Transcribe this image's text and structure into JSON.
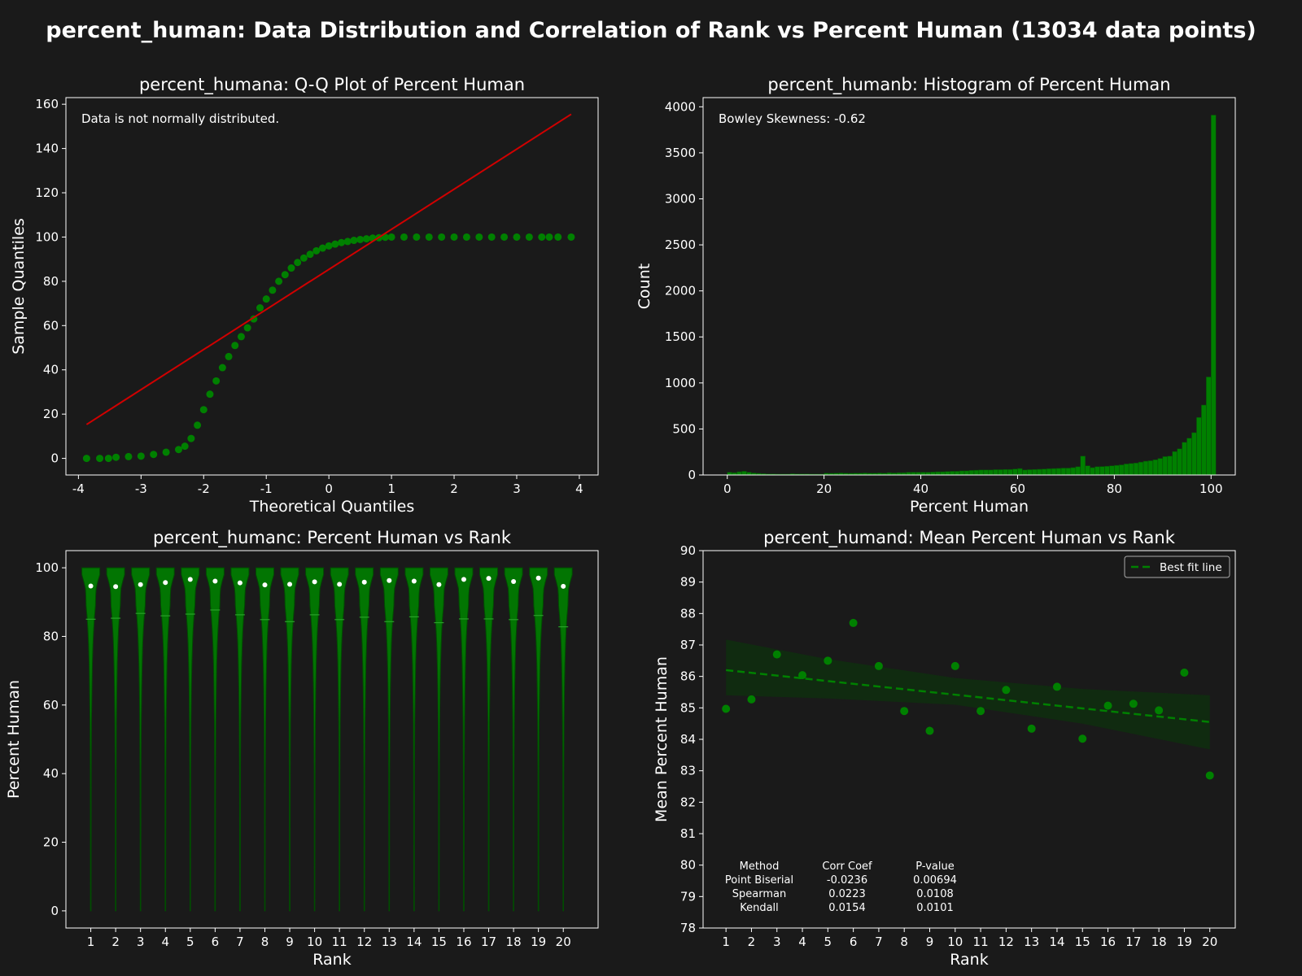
{
  "figure": {
    "suptitle": "percent_human: Data Distribution and Correlation of Rank vs Percent Human (13034 data points)",
    "colors": {
      "background": "#1a1a1a",
      "marker": "#008000",
      "line": "#d00000",
      "text": "#ffffff"
    }
  },
  "chart_data": [
    {
      "type": "scatter",
      "title": "percent_humana: Q-Q Plot of Percent Human",
      "xlabel": "Theoretical Quantiles",
      "ylabel": "Sample Quantiles",
      "xlim": [
        -4.2,
        4.3
      ],
      "ylim": [
        -7.5,
        163
      ],
      "xticks": [
        -4,
        -3,
        -2,
        -1,
        0,
        1,
        2,
        3,
        4
      ],
      "yticks": [
        0,
        20,
        40,
        60,
        80,
        100,
        120,
        140,
        160
      ],
      "annotation": "Data is not normally distributed.",
      "fit_line": {
        "x": [
          -3.87,
          3.87
        ],
        "y": [
          15.3,
          155.5
        ]
      },
      "points": {
        "x": [
          -3.87,
          -3.66,
          -3.52,
          -3.4,
          -3.2,
          -3.0,
          -2.8,
          -2.6,
          -2.4,
          -2.3,
          -2.2,
          -2.1,
          -2.0,
          -1.9,
          -1.8,
          -1.7,
          -1.6,
          -1.5,
          -1.4,
          -1.3,
          -1.2,
          -1.1,
          -1.0,
          -0.9,
          -0.8,
          -0.7,
          -0.6,
          -0.5,
          -0.4,
          -0.3,
          -0.2,
          -0.1,
          0.0,
          0.1,
          0.2,
          0.3,
          0.4,
          0.5,
          0.6,
          0.7,
          0.8,
          0.9,
          1.0,
          1.2,
          1.4,
          1.6,
          1.8,
          2.0,
          2.2,
          2.4,
          2.6,
          2.8,
          3.0,
          3.2,
          3.4,
          3.52,
          3.66,
          3.87
        ],
        "y": [
          0,
          0,
          0,
          0.5,
          0.8,
          1,
          1.8,
          2.8,
          4,
          5.5,
          9,
          15,
          22,
          29,
          35,
          41,
          46,
          51,
          55,
          59,
          63,
          68,
          72,
          76,
          80,
          83,
          86,
          88.5,
          90.5,
          92.2,
          93.8,
          95,
          96,
          96.8,
          97.5,
          98,
          98.5,
          98.9,
          99.2,
          99.5,
          99.7,
          99.9,
          100,
          100,
          100,
          100,
          100,
          100,
          100,
          100,
          100,
          100,
          100,
          100,
          100,
          100,
          100,
          100
        ]
      }
    },
    {
      "type": "bar",
      "title": "percent_humanb: Histogram of Percent Human",
      "xlabel": "Percent Human",
      "ylabel": "Count",
      "xlim": [
        -5,
        105
      ],
      "ylim": [
        0,
        4100
      ],
      "xticks": [
        0,
        20,
        40,
        60,
        80,
        100
      ],
      "yticks": [
        0,
        500,
        1000,
        1500,
        2000,
        2500,
        3000,
        3500,
        4000
      ],
      "annotation": "Bowley Skewness: -0.62",
      "bin_width": 1,
      "bin_start": 0,
      "counts": [
        30,
        25,
        35,
        40,
        30,
        22,
        18,
        15,
        12,
        12,
        10,
        10,
        10,
        14,
        12,
        12,
        12,
        10,
        10,
        10,
        20,
        18,
        20,
        22,
        20,
        18,
        20,
        20,
        22,
        20,
        20,
        22,
        20,
        25,
        22,
        25,
        25,
        30,
        30,
        30,
        30,
        30,
        32,
        35,
        35,
        38,
        40,
        40,
        45,
        45,
        50,
        52,
        55,
        55,
        55,
        58,
        58,
        60,
        60,
        65,
        70,
        55,
        58,
        60,
        62,
        65,
        68,
        70,
        72,
        75,
        75,
        80,
        90,
        205,
        100,
        80,
        90,
        92,
        95,
        100,
        105,
        110,
        120,
        125,
        130,
        140,
        150,
        155,
        165,
        180,
        200,
        205,
        255,
        285,
        355,
        400,
        460,
        625,
        760,
        1065,
        3910
      ]
    },
    {
      "type": "violin",
      "title": "percent_humanc: Percent Human vs Rank",
      "xlabel": "Rank",
      "ylabel": "Percent Human",
      "xlim": [
        0,
        21.4
      ],
      "ylim": [
        -5,
        105
      ],
      "yticks": [
        0,
        20,
        40,
        60,
        80,
        100
      ],
      "categories": [
        "1",
        "2",
        "3",
        "4",
        "5",
        "6",
        "7",
        "8",
        "9",
        "10",
        "11",
        "12",
        "13",
        "14",
        "15",
        "16",
        "17",
        "18",
        "19",
        "20"
      ],
      "medians": [
        94.7,
        94.5,
        95.1,
        95.7,
        96.6,
        96.1,
        95.6,
        95.0,
        95.2,
        95.9,
        95.2,
        95.8,
        96.3,
        96.1,
        95.1,
        96.6,
        96.9,
        96.0,
        97.0,
        94.6
      ],
      "means": [
        85.0,
        85.3,
        86.7,
        86.0,
        86.5,
        87.7,
        86.3,
        84.9,
        84.3,
        86.3,
        84.9,
        85.6,
        84.3,
        85.7,
        84.0,
        85.1,
        85.1,
        84.9,
        86.1,
        82.8
      ]
    },
    {
      "type": "scatter",
      "title": "percent_humand: Mean Percent Human vs Rank",
      "xlabel": "Rank",
      "ylabel": "Mean Percent Human",
      "xlim": [
        0.1,
        21.0
      ],
      "ylim": [
        78,
        90
      ],
      "xticks": [
        1,
        2,
        3,
        4,
        5,
        6,
        7,
        8,
        9,
        10,
        11,
        12,
        13,
        14,
        15,
        16,
        17,
        18,
        19,
        20
      ],
      "yticks": [
        78,
        79,
        80,
        81,
        82,
        83,
        84,
        85,
        86,
        87,
        88,
        89,
        90
      ],
      "x": [
        1,
        2,
        3,
        4,
        5,
        6,
        7,
        8,
        9,
        10,
        11,
        12,
        13,
        14,
        15,
        16,
        17,
        18,
        19,
        20
      ],
      "y": [
        84.97,
        85.27,
        86.7,
        86.04,
        86.5,
        87.7,
        86.33,
        84.9,
        84.27,
        86.33,
        84.9,
        85.57,
        84.34,
        85.67,
        84.02,
        85.07,
        85.13,
        84.92,
        86.12,
        82.85
      ],
      "fit_line": {
        "x": [
          1,
          20
        ],
        "y": [
          86.2,
          84.55
        ]
      },
      "ci_band": {
        "x": [
          1,
          5,
          10,
          15,
          20
        ],
        "upper": [
          87.17,
          86.55,
          85.95,
          85.6,
          85.4
        ],
        "lower": [
          85.4,
          85.3,
          85.1,
          84.5,
          83.68
        ]
      },
      "legend": {
        "label": "Best fit line",
        "position": "upper right"
      },
      "corr_table": {
        "headers": [
          "Method",
          "Corr Coef",
          "P-value"
        ],
        "rows": [
          [
            "Point Biserial",
            "-0.0236",
            "0.00694"
          ],
          [
            "Spearman",
            "0.0223",
            "0.0108"
          ],
          [
            "Kendall",
            "0.0154",
            "0.0101"
          ]
        ]
      }
    }
  ]
}
